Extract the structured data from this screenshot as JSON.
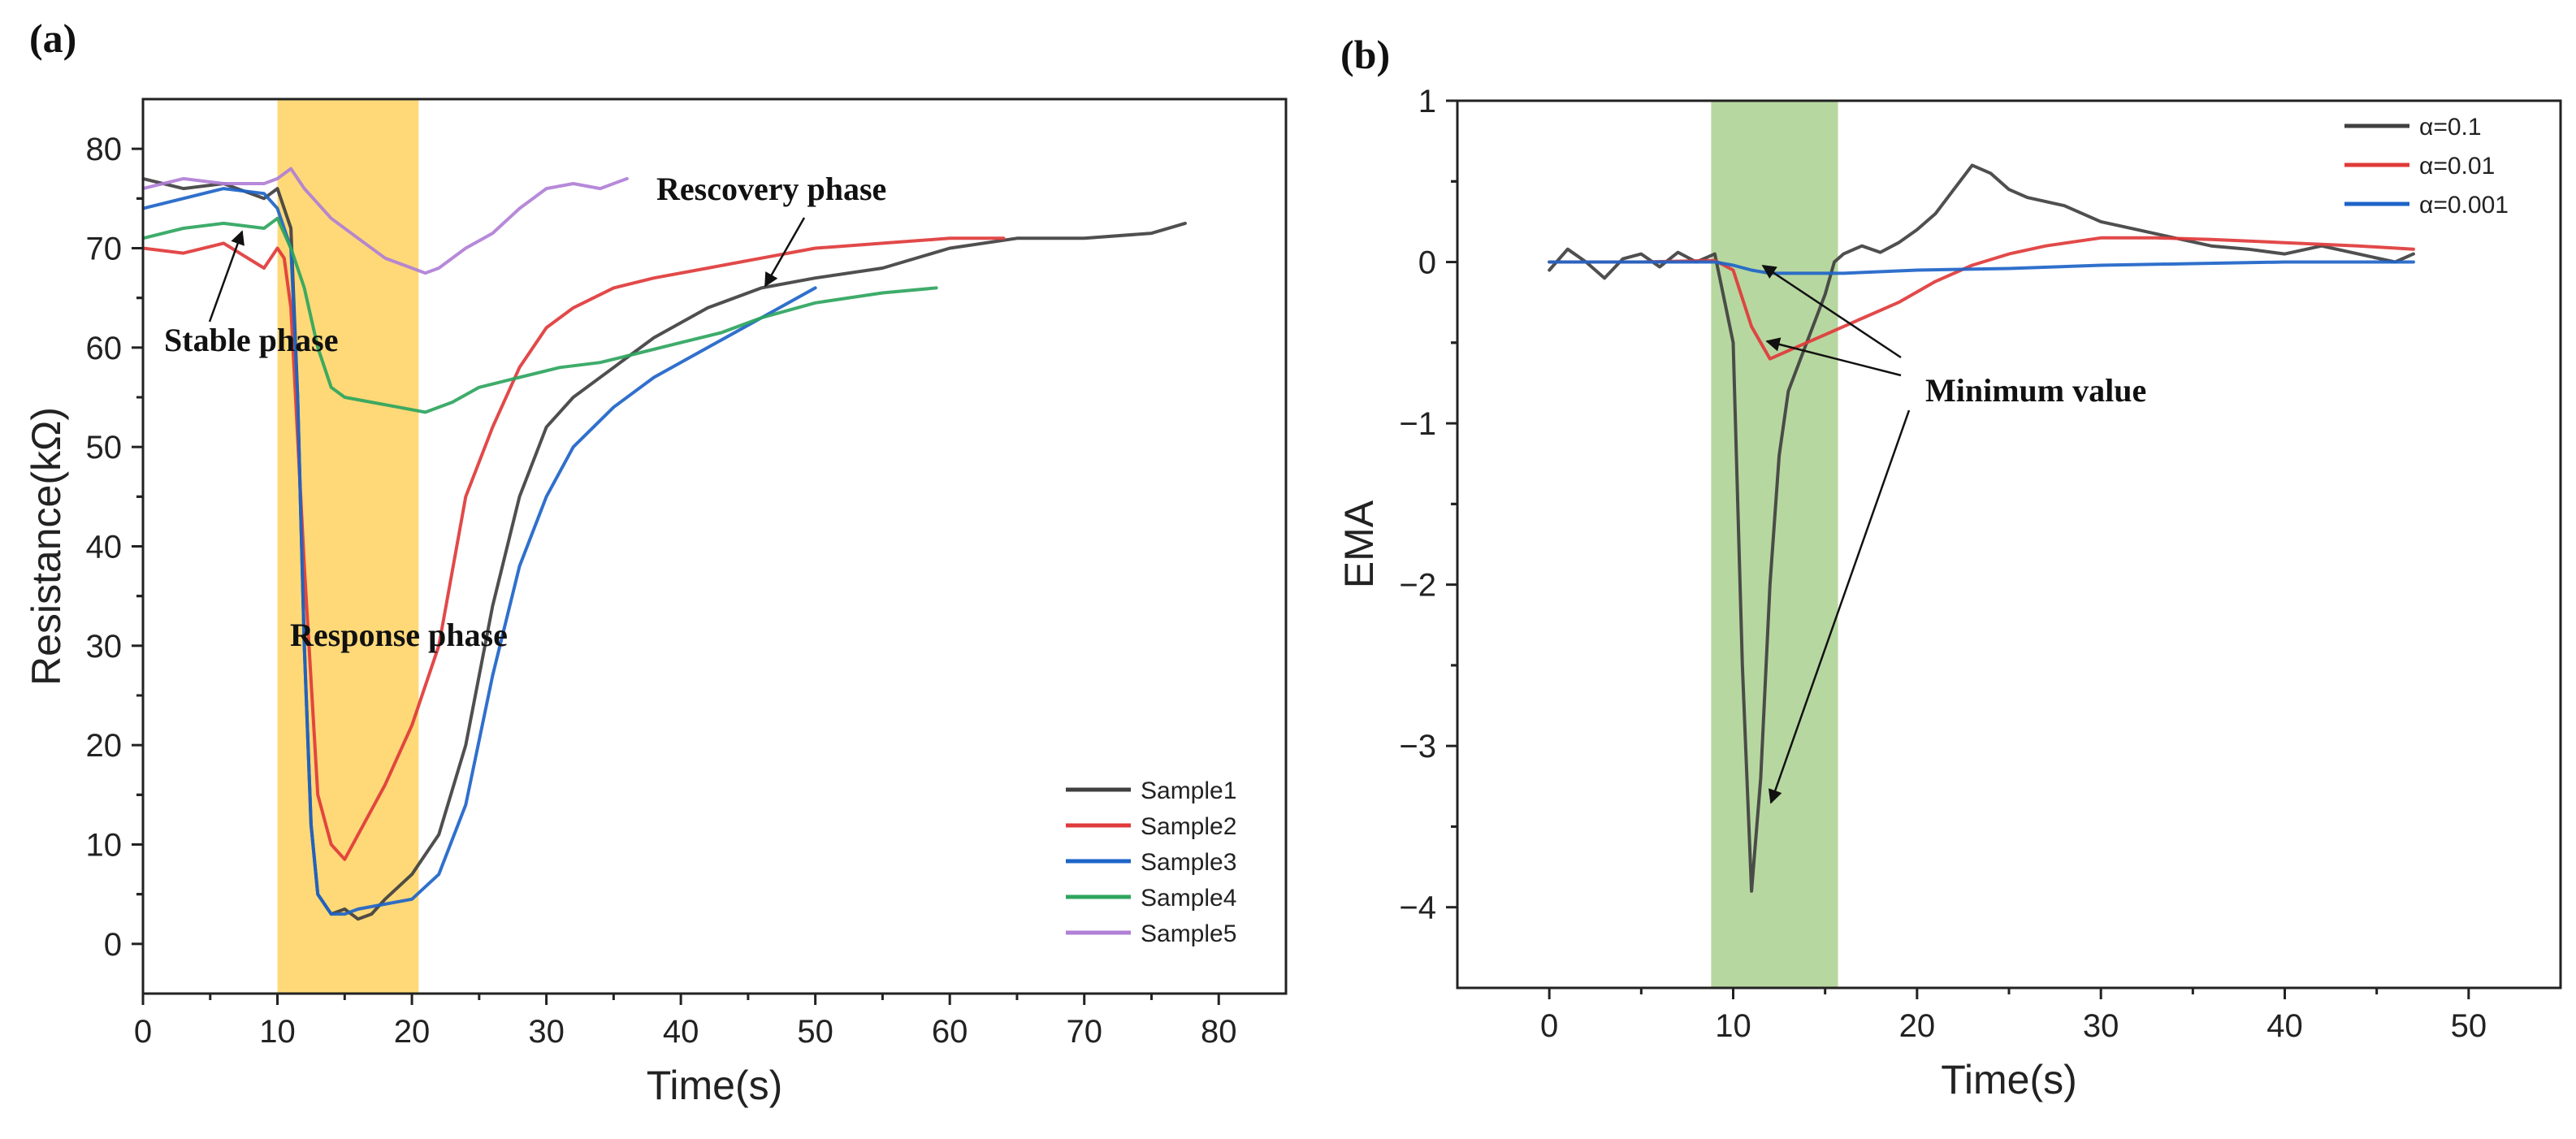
{
  "chart_data": [
    {
      "panel_label": "(a)",
      "type": "line",
      "xlabel": "Time(s)",
      "ylabel": "Resistance(kΩ)",
      "xlim": [
        0,
        85
      ],
      "ylim": [
        -5,
        85
      ],
      "xticks": [
        "0",
        "10",
        "20",
        "30",
        "40",
        "50",
        "60",
        "70",
        "80"
      ],
      "yticks": [
        "0",
        "10",
        "20",
        "30",
        "40",
        "50",
        "60",
        "70",
        "80"
      ],
      "highlight_band": {
        "x_range": [
          10,
          20.5
        ],
        "color": "#FFD978"
      },
      "legend_position": "bottom-right",
      "series": [
        {
          "name": "Sample1",
          "color": "#404040",
          "x": [
            0,
            3,
            6,
            9,
            10,
            11,
            11.5,
            12,
            12.5,
            13,
            14,
            15,
            16,
            17,
            18,
            20,
            22,
            24,
            26,
            28,
            30,
            32,
            35,
            38,
            42,
            46,
            50,
            55,
            60,
            65,
            70,
            75,
            77.5
          ],
          "y": [
            77,
            76,
            76.5,
            75,
            76,
            72,
            55,
            30,
            12,
            5,
            3,
            3.5,
            2.5,
            3,
            4.5,
            7,
            11,
            20,
            34,
            45,
            52,
            55,
            58,
            61,
            64,
            66,
            67,
            68,
            70,
            71,
            71,
            71.5,
            72.5
          ]
        },
        {
          "name": "Sample2",
          "color": "#E03A3A",
          "x": [
            0,
            3,
            6,
            9,
            10,
            10.5,
            11,
            12,
            13,
            14,
            15,
            16,
            18,
            20,
            22,
            24,
            26,
            28,
            30,
            32,
            35,
            38,
            42,
            46,
            50,
            55,
            60,
            64
          ],
          "y": [
            70,
            69.5,
            70.5,
            68,
            70,
            69,
            64,
            38,
            15,
            10,
            8.5,
            11,
            16,
            22,
            30,
            45,
            52,
            58,
            62,
            64,
            66,
            67,
            68,
            69,
            70,
            70.5,
            71,
            71
          ]
        },
        {
          "name": "Sample3",
          "color": "#1E64C8",
          "x": [
            0,
            3,
            6,
            9,
            10,
            11,
            11.5,
            12,
            12.5,
            13,
            14,
            15,
            16,
            18,
            20,
            22,
            24,
            26,
            28,
            30,
            32,
            35,
            38,
            42,
            46,
            50
          ],
          "y": [
            74,
            75,
            76,
            75.5,
            74,
            70,
            55,
            30,
            12,
            5,
            3,
            3,
            3.5,
            4,
            4.5,
            7,
            14,
            27,
            38,
            45,
            50,
            54,
            57,
            60,
            63,
            66
          ]
        },
        {
          "name": "Sample4",
          "color": "#2EA55E",
          "x": [
            0,
            3,
            6,
            9,
            10,
            11,
            12,
            13,
            14,
            15,
            17,
            19,
            21,
            23,
            25,
            28,
            31,
            34,
            37,
            40,
            43,
            46,
            50,
            55,
            59
          ],
          "y": [
            71,
            72,
            72.5,
            72,
            73,
            70,
            66,
            60,
            56,
            55,
            54.5,
            54,
            53.5,
            54.5,
            56,
            57,
            58,
            58.5,
            59.5,
            60.5,
            61.5,
            63,
            64.5,
            65.5,
            66
          ]
        },
        {
          "name": "Sample5",
          "color": "#B07FD6",
          "x": [
            0,
            3,
            6,
            9,
            10,
            11,
            12,
            14,
            16,
            18,
            20,
            21,
            22,
            24,
            26,
            28,
            30,
            32,
            34,
            36
          ],
          "y": [
            76,
            77,
            76.5,
            76.5,
            77,
            78,
            76,
            73,
            71,
            69,
            68,
            67.5,
            68,
            70,
            71.5,
            74,
            76,
            76.5,
            76,
            77
          ]
        }
      ],
      "annotations": [
        "Stable phase",
        "Response phase",
        "Rescovery phase"
      ]
    },
    {
      "panel_label": "(b)",
      "type": "line",
      "xlabel": "Time(s)",
      "ylabel": "EMA",
      "xlim": [
        -5,
        55
      ],
      "ylim": [
        -4.5,
        1
      ],
      "xticks": [
        "0",
        "10",
        "20",
        "30",
        "40",
        "50"
      ],
      "yticks": [
        "1",
        "0",
        "−1",
        "−2",
        "−3",
        "−4"
      ],
      "highlight_band": {
        "x_range": [
          8.8,
          15.7
        ],
        "color": "#B7D7A0"
      },
      "legend_position": "top-right",
      "series": [
        {
          "name": "α=0.1",
          "color": "#404040",
          "x": [
            0,
            1,
            2,
            3,
            4,
            5,
            6,
            7,
            8,
            9,
            10,
            10.5,
            11,
            11.5,
            12,
            12.5,
            13,
            14,
            15,
            15.5,
            16,
            17,
            18,
            19,
            20,
            21,
            22,
            23,
            24,
            25,
            26,
            28,
            30,
            32,
            34,
            36,
            38,
            40,
            42,
            44,
            46,
            47
          ],
          "y": [
            -0.05,
            0.08,
            0.0,
            -0.1,
            0.02,
            0.05,
            -0.03,
            0.06,
            0.0,
            0.05,
            -0.5,
            -2.5,
            -3.9,
            -3.2,
            -2.0,
            -1.2,
            -0.8,
            -0.5,
            -0.2,
            0.0,
            0.05,
            0.1,
            0.06,
            0.12,
            0.2,
            0.3,
            0.45,
            0.6,
            0.55,
            0.45,
            0.4,
            0.35,
            0.25,
            0.2,
            0.15,
            0.1,
            0.08,
            0.05,
            0.1,
            0.05,
            0.0,
            0.05
          ]
        },
        {
          "name": "α=0.01",
          "color": "#E03A3A",
          "x": [
            0,
            5,
            9,
            10,
            11,
            12,
            13,
            15,
            17,
            19,
            21,
            23,
            25,
            27,
            30,
            33,
            36,
            40,
            44,
            47
          ],
          "y": [
            0.0,
            0.0,
            0.01,
            -0.05,
            -0.4,
            -0.6,
            -0.55,
            -0.45,
            -0.35,
            -0.25,
            -0.12,
            -0.02,
            0.05,
            0.1,
            0.15,
            0.15,
            0.14,
            0.12,
            0.1,
            0.08
          ]
        },
        {
          "name": "α=0.001",
          "color": "#1E64C8",
          "x": [
            0,
            5,
            9,
            10,
            11,
            12,
            14,
            16,
            20,
            25,
            30,
            35,
            40,
            45,
            47
          ],
          "y": [
            0.0,
            0.0,
            0.0,
            -0.02,
            -0.05,
            -0.07,
            -0.07,
            -0.07,
            -0.05,
            -0.04,
            -0.02,
            -0.01,
            0.0,
            0.0,
            0.0
          ]
        }
      ],
      "annotations": [
        "Minimum value"
      ]
    }
  ]
}
